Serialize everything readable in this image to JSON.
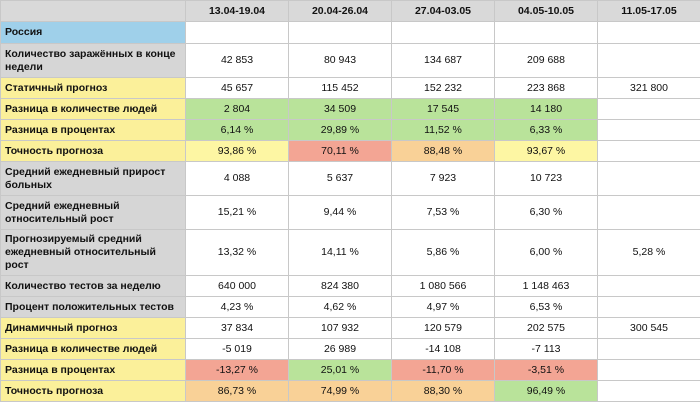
{
  "columns": [
    "",
    "13.04-19.04",
    "20.04-26.04",
    "27.04-03.05",
    "04.05-10.05",
    "11.05-17.05"
  ],
  "rows": [
    {
      "label": "Россия",
      "style": "blue",
      "h": 22,
      "values": [
        "",
        "",
        "",
        "",
        ""
      ],
      "colors": [
        "",
        "",
        "",
        "",
        ""
      ]
    },
    {
      "label": "Количество заражённых в конце недели",
      "style": "gray",
      "h": 34,
      "values": [
        "42 853",
        "80 943",
        "134 687",
        "209 688",
        ""
      ],
      "colors": [
        "",
        "",
        "",
        "",
        ""
      ]
    },
    {
      "label": "Статичный прогноз",
      "style": "yellow",
      "h": 21,
      "values": [
        "45 657",
        "115 452",
        "152 232",
        "223 868",
        "321 800"
      ],
      "colors": [
        "",
        "",
        "",
        "",
        ""
      ]
    },
    {
      "label": "Разница в количестве людей",
      "style": "yellow",
      "h": 21,
      "values": [
        "2 804",
        "34 509",
        "17 545",
        "14 180",
        ""
      ],
      "colors": [
        "g",
        "g",
        "g",
        "g",
        ""
      ]
    },
    {
      "label": "Разница в процентах",
      "style": "yellow",
      "h": 21,
      "values": [
        "6,14 %",
        "29,89 %",
        "11,52 %",
        "6,33 %",
        ""
      ],
      "colors": [
        "g",
        "g",
        "g",
        "g",
        ""
      ]
    },
    {
      "label": "Точность прогноза",
      "style": "yellow",
      "h": 21,
      "values": [
        "93,86 %",
        "70,11 %",
        "88,48 %",
        "93,67 %",
        ""
      ],
      "colors": [
        "y",
        "r",
        "o",
        "y",
        ""
      ]
    },
    {
      "label": "Средний ежедневный прирост больных",
      "style": "gray",
      "h": 34,
      "values": [
        "4 088",
        "5 637",
        "7 923",
        "10 723",
        ""
      ],
      "colors": [
        "",
        "",
        "",
        "",
        ""
      ]
    },
    {
      "label": "Средний ежедневный относительный рост",
      "style": "gray",
      "h": 34,
      "values": [
        "15,21 %",
        "9,44 %",
        "7,53 %",
        "6,30 %",
        ""
      ],
      "colors": [
        "",
        "",
        "",
        "",
        ""
      ]
    },
    {
      "label": "Прогнозируемый средний ежедневный относительный рост",
      "style": "gray",
      "h": 46,
      "values": [
        "13,32 %",
        "14,11 %",
        "5,86 %",
        "6,00 %",
        "5,28 %"
      ],
      "colors": [
        "",
        "",
        "",
        "",
        ""
      ]
    },
    {
      "label": "Количество тестов за неделю",
      "style": "gray",
      "h": 21,
      "values": [
        "640 000",
        "824 380",
        "1 080 566",
        "1 148 463",
        ""
      ],
      "colors": [
        "",
        "",
        "",
        "",
        ""
      ]
    },
    {
      "label": "Процент положительных тестов",
      "style": "gray",
      "h": 21,
      "values": [
        "4,23 %",
        "4,62 %",
        "4,97 %",
        "6,53 %",
        ""
      ],
      "colors": [
        "",
        "",
        "",
        "",
        ""
      ]
    },
    {
      "label": "Динамичный прогноз",
      "style": "yellow",
      "h": 21,
      "values": [
        "37 834",
        "107 932",
        "120 579",
        "202 575",
        "300 545"
      ],
      "colors": [
        "",
        "",
        "",
        "",
        ""
      ]
    },
    {
      "label": "Разница в количестве людей",
      "style": "yellow",
      "h": 21,
      "values": [
        "-5 019",
        "26 989",
        "-14 108",
        "-7 113",
        ""
      ],
      "colors": [
        "",
        "",
        "",
        "",
        ""
      ]
    },
    {
      "label": "Разница в процентах",
      "style": "yellow",
      "h": 21,
      "values": [
        "-13,27 %",
        "25,01 %",
        "-11,70 %",
        "-3,51 %",
        ""
      ],
      "colors": [
        "r",
        "g",
        "r",
        "r",
        ""
      ]
    },
    {
      "label": "Точность прогноза",
      "style": "yellow",
      "h": 21,
      "values": [
        "86,73 %",
        "74,99 %",
        "88,30 %",
        "96,49 %",
        ""
      ],
      "colors": [
        "o",
        "o",
        "o",
        "g",
        ""
      ]
    }
  ]
}
